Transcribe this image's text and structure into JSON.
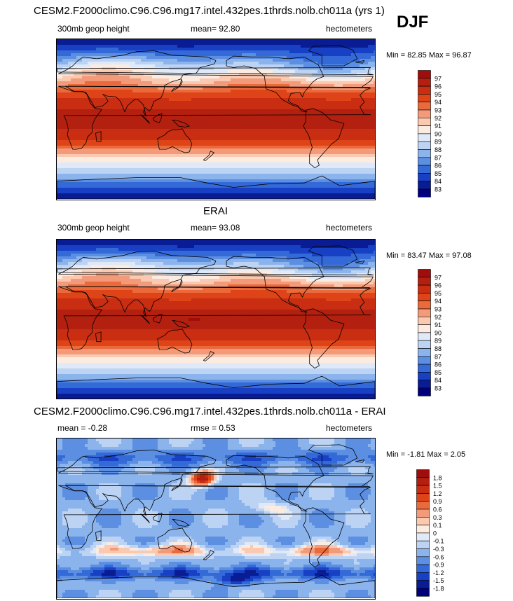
{
  "season": "DJF",
  "chart_data": [
    {
      "type": "heatmap",
      "title": "CESM2.F2000climo.C96.C96.mg17.intel.432pes.1thrds.nolb.ch011a (yrs 1)",
      "left_label": "300mb geop height",
      "center_label": "mean=  92.80",
      "right_label": "hectometers",
      "min_max": "Min =  82.85 Max =  96.87",
      "stats": {
        "mean": 92.8,
        "min": 82.85,
        "max": 96.87
      },
      "colorbar": {
        "levels": [
          "97",
          "96",
          "95",
          "94",
          "93",
          "92",
          "91",
          "90",
          "89",
          "88",
          "87",
          "86",
          "85",
          "84",
          "83"
        ],
        "colors": [
          "#9f0d0d",
          "#b3200f",
          "#c92d12",
          "#de4418",
          "#ea6a3c",
          "#f39a7a",
          "#fbc9b0",
          "#fcebe0",
          "#dfe9f8",
          "#bcd3f3",
          "#8cb4ec",
          "#5c8fe2",
          "#3469d8",
          "#1840c4",
          "#0a1c94",
          "#00007f"
        ]
      },
      "map_style": "geop"
    },
    {
      "type": "heatmap",
      "title": "ERAI",
      "left_label": "300mb geop height",
      "center_label": "mean=  93.08",
      "right_label": "hectometers",
      "min_max": "Min =  83.47 Max =  97.08",
      "stats": {
        "mean": 93.08,
        "min": 83.47,
        "max": 97.08
      },
      "colorbar": {
        "levels": [
          "97",
          "96",
          "95",
          "94",
          "93",
          "92",
          "91",
          "90",
          "89",
          "88",
          "87",
          "86",
          "85",
          "84",
          "83"
        ],
        "colors": [
          "#9f0d0d",
          "#b3200f",
          "#c92d12",
          "#de4418",
          "#ea6a3c",
          "#f39a7a",
          "#fbc9b0",
          "#fcebe0",
          "#dfe9f8",
          "#bcd3f3",
          "#8cb4ec",
          "#5c8fe2",
          "#3469d8",
          "#1840c4",
          "#0a1c94",
          "#00007f"
        ]
      },
      "map_style": "geop"
    },
    {
      "type": "heatmap",
      "title": "CESM2.F2000climo.C96.C96.mg17.intel.432pes.1thrds.nolb.ch011a - ERAI",
      "left_label": "mean =  -0.28",
      "center_label": "rmse =   0.53",
      "right_label": "hectometers",
      "min_max": "Min =  -1.81 Max =   2.05",
      "stats": {
        "mean": -0.28,
        "rmse": 0.53,
        "min": -1.81,
        "max": 2.05
      },
      "colorbar": {
        "levels": [
          "1.8",
          "1.5",
          "1.2",
          "0.9",
          "0.6",
          "0.3",
          "0.1",
          "0",
          "-0.1",
          "-0.3",
          "-0.6",
          "-0.9",
          "-1.2",
          "-1.5",
          "-1.8"
        ],
        "colors": [
          "#9f0d0d",
          "#b3200f",
          "#c92d12",
          "#de4418",
          "#ea6a3c",
          "#f39a7a",
          "#fbc9b0",
          "#fcebe0",
          "#dfe9f8",
          "#bcd3f3",
          "#8cb4ec",
          "#5c8fe2",
          "#3469d8",
          "#1840c4",
          "#0a1c94",
          "#00007f"
        ]
      },
      "map_style": "diff"
    }
  ]
}
